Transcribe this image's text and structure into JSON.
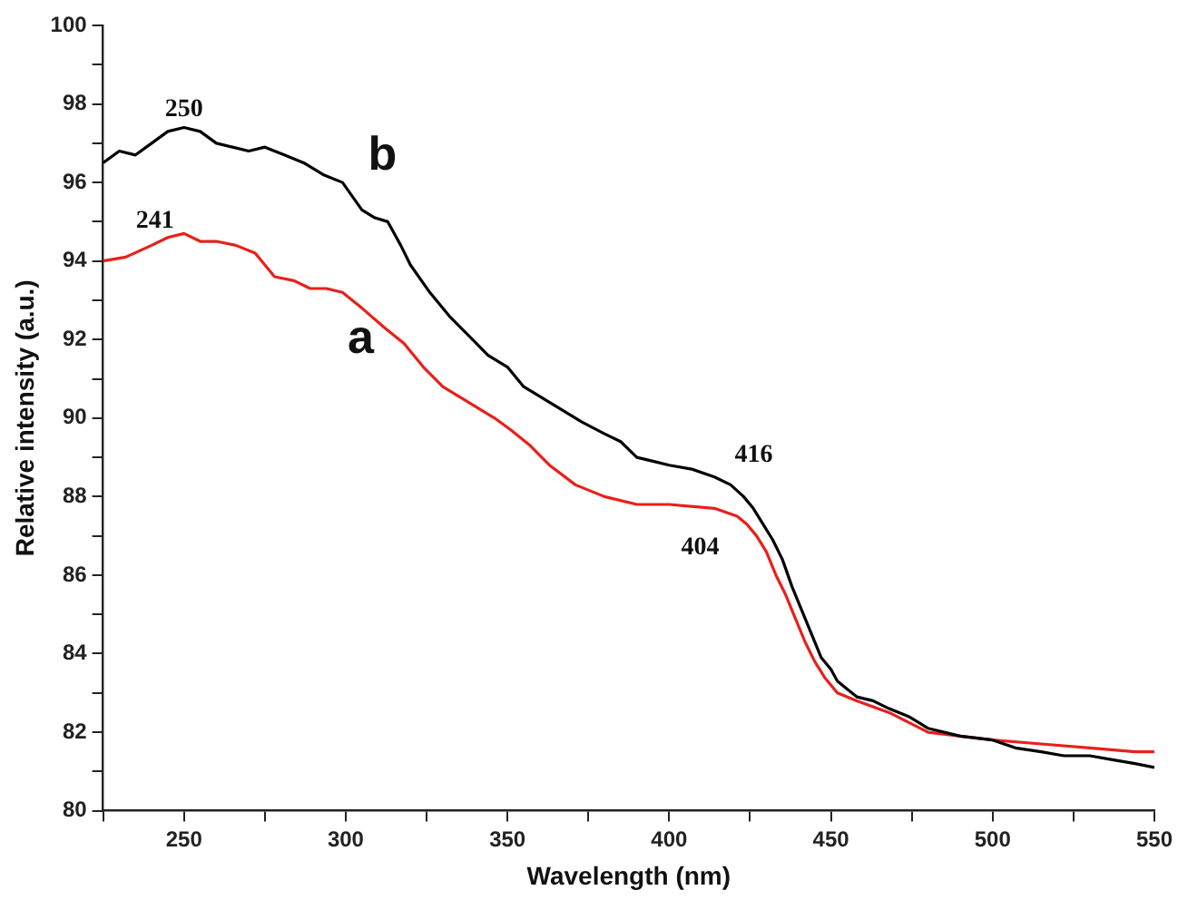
{
  "chart_data": {
    "type": "line",
    "xlabel": "Wavelength (nm)",
    "ylabel": "Relative intensity (a.u.)",
    "xlim": [
      225,
      550
    ],
    "xticks": [
      {
        "value": 225,
        "label": null
      },
      250,
      {
        "value": 275,
        "label": null
      },
      300,
      {
        "value": 325,
        "label": null
      },
      350,
      {
        "value": 375,
        "label": null
      },
      400,
      {
        "value": 425,
        "label": null
      },
      450,
      {
        "value": 475,
        "label": null
      },
      500,
      {
        "value": 525,
        "label": null
      },
      550
    ],
    "ylim": [
      80,
      100
    ],
    "yticks": [
      80,
      {
        "value": 81,
        "label": null
      },
      82,
      {
        "value": 83,
        "label": null
      },
      84,
      {
        "value": 85,
        "label": null
      },
      86,
      {
        "value": 87,
        "label": null
      },
      88,
      {
        "value": 89,
        "label": null
      },
      90,
      {
        "value": 91,
        "label": null
      },
      92,
      {
        "value": 93,
        "label": null
      },
      94,
      {
        "value": 95,
        "label": null
      },
      96,
      {
        "value": 97,
        "label": null
      },
      98,
      {
        "value": 99,
        "label": null
      },
      100
    ],
    "grid": false,
    "legend": false,
    "marker": "none",
    "line_style": "solid",
    "series": [
      {
        "name": "b",
        "color": "#000000",
        "x": [
          225,
          230,
          235,
          240,
          245,
          250,
          255,
          260,
          265,
          270,
          275,
          281,
          287,
          293,
          299,
          305,
          309,
          313,
          317,
          320,
          326,
          332,
          338,
          344,
          350,
          355,
          361,
          367,
          373,
          380,
          385,
          390,
          395,
          400,
          407,
          414,
          419,
          423,
          426,
          429,
          432,
          435,
          438,
          441,
          444,
          447,
          450,
          452,
          455,
          458,
          463,
          468,
          474,
          480,
          490,
          500,
          507,
          515,
          522,
          530,
          537,
          544,
          550
        ],
        "values": [
          96.5,
          96.8,
          96.7,
          97.0,
          97.3,
          97.4,
          97.3,
          97.0,
          96.9,
          96.8,
          96.9,
          96.7,
          96.5,
          96.2,
          96.0,
          95.3,
          95.1,
          95.0,
          94.4,
          93.9,
          93.2,
          92.6,
          92.1,
          91.6,
          91.3,
          90.8,
          90.5,
          90.2,
          89.9,
          89.6,
          89.4,
          89.0,
          88.9,
          88.8,
          88.7,
          88.5,
          88.3,
          88.0,
          87.7,
          87.3,
          86.9,
          86.4,
          85.7,
          85.1,
          84.5,
          83.9,
          83.6,
          83.3,
          83.1,
          82.9,
          82.8,
          82.6,
          82.4,
          82.1,
          81.9,
          81.8,
          81.6,
          81.5,
          81.4,
          81.4,
          81.3,
          81.2,
          81.1
        ]
      },
      {
        "name": "a",
        "color": "#e8201c",
        "x": [
          225,
          232,
          240,
          245,
          250,
          255,
          260,
          266,
          272,
          278,
          284,
          289,
          294,
          299,
          305,
          312,
          318,
          324,
          330,
          334,
          340,
          346,
          351,
          357,
          363,
          371,
          380,
          390,
          400,
          414,
          421,
          424,
          427,
          430,
          433,
          436,
          439,
          442,
          445,
          448,
          452,
          458,
          468,
          480,
          490,
          500,
          515,
          530,
          544,
          550
        ],
        "values": [
          94.0,
          94.1,
          94.4,
          94.6,
          94.7,
          94.5,
          94.5,
          94.4,
          94.2,
          93.6,
          93.5,
          93.3,
          93.3,
          93.2,
          92.8,
          92.3,
          91.9,
          91.3,
          90.8,
          90.6,
          90.3,
          90.0,
          89.7,
          89.3,
          88.8,
          88.3,
          88.0,
          87.8,
          87.8,
          87.7,
          87.5,
          87.3,
          87.0,
          86.6,
          86.0,
          85.5,
          84.9,
          84.3,
          83.8,
          83.4,
          83.0,
          82.8,
          82.5,
          82.0,
          81.9,
          81.8,
          81.7,
          81.6,
          81.5,
          81.5
        ]
      }
    ],
    "annotations": [
      {
        "text": "250",
        "x": 250,
        "y": 97.4
      },
      {
        "text": "241",
        "x": 241,
        "y": 94.6
      },
      {
        "text": "416",
        "x": 416,
        "y": 88.5
      },
      {
        "text": "404",
        "x": 404,
        "y": 87.8
      }
    ]
  }
}
